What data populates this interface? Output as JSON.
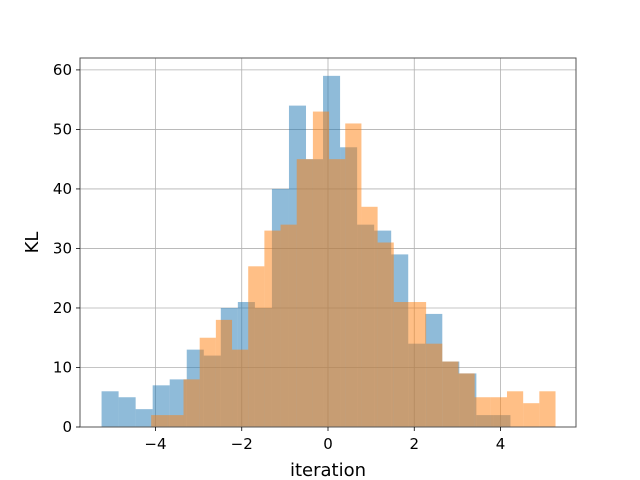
{
  "chart_data": {
    "type": "bar",
    "title": "",
    "xlabel": "iteration",
    "ylabel": "KL",
    "xlim": [
      -5.75,
      5.75
    ],
    "ylim": [
      0,
      62
    ],
    "grid": true,
    "xticks": [
      -4,
      -2,
      0,
      2,
      4
    ],
    "xtick_labels": [
      "−4",
      "−2",
      "0",
      "2",
      "4"
    ],
    "yticks": [
      0,
      10,
      20,
      30,
      40,
      50,
      60
    ],
    "ytick_labels": [
      "0",
      "10",
      "20",
      "30",
      "40",
      "50",
      "60"
    ],
    "series": [
      {
        "color": "#1f77b4",
        "opacity": 0.5,
        "bins": [
          -5.25,
          -4.855,
          -4.46,
          -4.065,
          -3.67,
          -3.275,
          -2.88,
          -2.485,
          -2.09,
          -1.695,
          -1.3,
          -0.905,
          -0.51,
          -0.115,
          0.28,
          0.675,
          1.07,
          1.465,
          1.86,
          2.255,
          2.65,
          3.045,
          3.44,
          3.835,
          4.23
        ],
        "values": [
          6,
          5,
          3,
          7,
          8,
          13,
          12,
          20,
          21,
          20,
          40,
          54,
          45,
          59,
          47,
          34,
          33,
          29,
          14,
          19,
          11,
          9,
          2,
          2
        ]
      },
      {
        "color": "#ff7f0e",
        "opacity": 0.5,
        "bins": [
          -4.1,
          -3.725,
          -3.35,
          -2.975,
          -2.6,
          -2.225,
          -1.85,
          -1.475,
          -1.1,
          -0.725,
          -0.35,
          0.025,
          0.4,
          0.775,
          1.15,
          1.525,
          1.9,
          2.275,
          2.65,
          3.025,
          3.4,
          3.775,
          4.15,
          4.525,
          4.9,
          5.275
        ],
        "values": [
          2,
          2,
          8,
          15,
          18,
          13,
          27,
          33,
          34,
          45,
          53,
          45,
          51,
          37,
          31,
          21,
          21,
          14,
          11,
          9,
          5,
          5,
          6,
          4,
          6
        ]
      }
    ]
  }
}
